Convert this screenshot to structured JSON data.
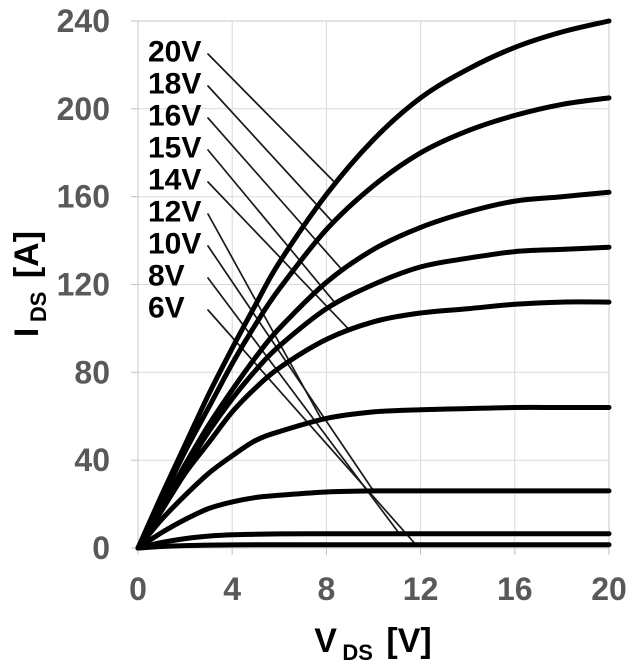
{
  "colors": {
    "curve": "#000000",
    "leader_line": "#1a1a1a",
    "gridline": "#d9d9d9",
    "plot_border": "#c9c9c9",
    "tick_mark": "#bfbfbf",
    "tick_text": "#595959",
    "axis_title_text": "#000000",
    "curve_label_text": "#000000",
    "background": "#ffffff"
  },
  "x_axis": {
    "symbol": "V",
    "subscript": "DS",
    "unit": "[V]",
    "ticks": [
      0,
      4,
      8,
      12,
      16,
      20
    ]
  },
  "y_axis": {
    "symbol": "I",
    "subscript": "DS",
    "unit": "[A]",
    "ticks": [
      0,
      40,
      80,
      120,
      160,
      200,
      240
    ]
  },
  "chart_data": {
    "type": "line",
    "title": "",
    "xlabel": "V_DS [V]",
    "ylabel": "I_DS [A]",
    "xlim": [
      0,
      20
    ],
    "ylim": [
      0,
      240
    ],
    "grid": true,
    "x_grid_step": 4,
    "y_grid_step": 40,
    "legend_position": "inline labels top-left with leader lines to curves",
    "x": [
      0,
      1,
      2,
      3,
      4,
      5,
      6,
      8,
      10,
      12,
      14,
      16,
      18,
      20
    ],
    "series": [
      {
        "name": "20V",
        "values": [
          0,
          24,
          47,
          70,
          91,
          111,
          130,
          161,
          186,
          205,
          218,
          228,
          235,
          240
        ],
        "leader_end_x": 8.4
      },
      {
        "name": "18V",
        "values": [
          0,
          22,
          44,
          64,
          84,
          102,
          118,
          145,
          165,
          180,
          190,
          197,
          202,
          205
        ],
        "leader_end_x": 8.3
      },
      {
        "name": "16V",
        "values": [
          0,
          19,
          38,
          56,
          72,
          87,
          100,
          121,
          136,
          146,
          153,
          158,
          160,
          162
        ],
        "leader_end_x": 8.7
      },
      {
        "name": "15V",
        "values": [
          0,
          18,
          36,
          53,
          68,
          81,
          92,
          109,
          120,
          128,
          132,
          135,
          136,
          137
        ],
        "leader_end_x": 8.4
      },
      {
        "name": "14V",
        "values": [
          0,
          17,
          34,
          48,
          62,
          73,
          82,
          95,
          103,
          107,
          109,
          111,
          112,
          112
        ],
        "leader_end_x": 9.0
      },
      {
        "name": "12V",
        "values": [
          0,
          13,
          24,
          34,
          42,
          49,
          53,
          59,
          62,
          63,
          63.5,
          64,
          64,
          64
        ],
        "leader_end_x": 7.8
      },
      {
        "name": "10V",
        "values": [
          0,
          7,
          13,
          18,
          21,
          23,
          24,
          25.5,
          26,
          26,
          26,
          26,
          26,
          26
        ],
        "leader_end_x": 10.0
      },
      {
        "name": "8V",
        "values": [
          0,
          2.5,
          4.3,
          5.4,
          6.0,
          6.3,
          6.4,
          6.5,
          6.5,
          6.5,
          6.5,
          6.5,
          6.5,
          6.5
        ],
        "leader_end_x": 11.1
      },
      {
        "name": "6V",
        "values": [
          0,
          0.7,
          1.1,
          1.3,
          1.4,
          1.5,
          1.5,
          1.5,
          1.5,
          1.5,
          1.5,
          1.5,
          1.5,
          1.5
        ],
        "leader_end_x": 11.8
      }
    ]
  }
}
